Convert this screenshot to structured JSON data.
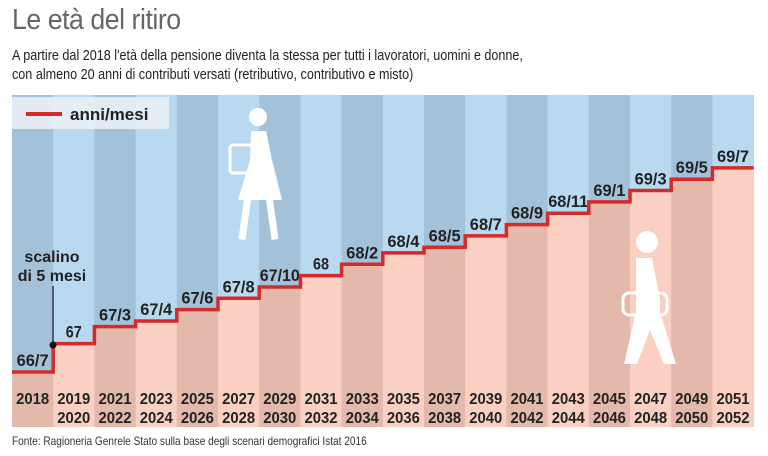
{
  "title": "Le età del ritiro",
  "subtitle": [
    "A partire dal 2018 l'età della pensione diventa la stessa per tutti i lavoratori, uomini e donne,",
    "con almeno 20 anni di contributi versati (retributivo, contributivo e misto)"
  ],
  "source": "Fonte: Ragioneria Genrele Stato sulla base degli scenari demografici Istat 2016",
  "colors": {
    "line": "#d42a2a",
    "sky_light": "#b9d9f1",
    "sky_dark": "#a3c2da",
    "ground_light": "#f9d0c1",
    "ground_dark": "#e2b9ab"
  },
  "icons": [
    "woman-walking-icon",
    "man-walking-icon"
  ],
  "chart_data": {
    "type": "line",
    "step": true,
    "legend": {
      "label": "anni/mesi",
      "placement": "top-left"
    },
    "annotation": {
      "lines": [
        "scalino",
        "di 5 mesi"
      ]
    },
    "categories": [
      [
        "2018",
        ""
      ],
      [
        "2019",
        "2020"
      ],
      [
        "2021",
        "2022"
      ],
      [
        "2023",
        "2024"
      ],
      [
        "2025",
        "2026"
      ],
      [
        "2027",
        "2028"
      ],
      [
        "2029",
        "2030"
      ],
      [
        "2031",
        "2032"
      ],
      [
        "2033",
        "2034"
      ],
      [
        "2035",
        "2036"
      ],
      [
        "2037",
        "2038"
      ],
      [
        "2039",
        "2040"
      ],
      [
        "2041",
        "2042"
      ],
      [
        "2043",
        "2044"
      ],
      [
        "2045",
        "2046"
      ],
      [
        "2047",
        "2048"
      ],
      [
        "2049",
        "2050"
      ],
      [
        "2051",
        "2052"
      ]
    ],
    "values": [
      "66/7",
      "67",
      "67/3",
      "67/4",
      "67/6",
      "67/8",
      "67/10",
      "68",
      "68/2",
      "68/4",
      "68/5",
      "68/7",
      "68/9",
      "68/11",
      "69/1",
      "69/3",
      "69/5",
      "69/7"
    ]
  }
}
